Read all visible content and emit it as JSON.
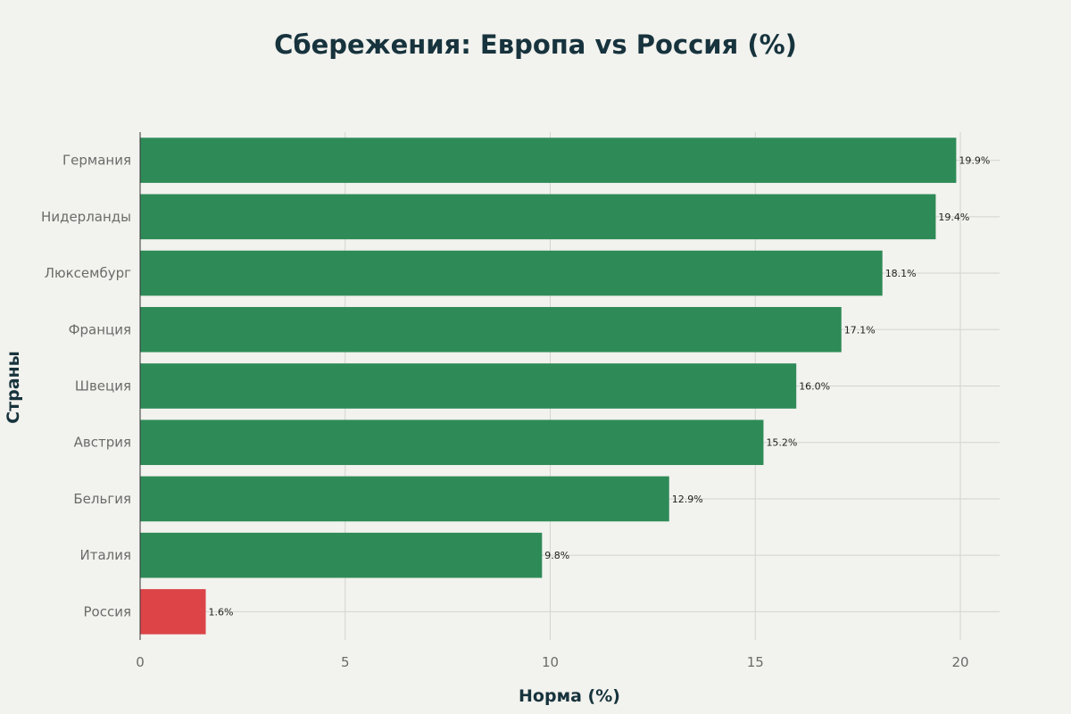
{
  "chart_data": {
    "type": "bar",
    "orientation": "horizontal",
    "title": "Сбережения: Европа vs Россия (%)",
    "xlabel": "Норма (%)",
    "ylabel": "Страны",
    "categories": [
      "Германия",
      "Нидерланды",
      "Люксембург",
      "Франция",
      "Швеция",
      "Австрия",
      "Бельгия",
      "Италия",
      "Россия"
    ],
    "values": [
      19.9,
      19.4,
      18.1,
      17.1,
      16.0,
      15.2,
      12.9,
      9.8,
      1.6
    ],
    "data_labels": [
      "19.9%",
      "19.4%",
      "18.1%",
      "17.1%",
      "16.0%",
      "15.2%",
      "12.9%",
      "9.8%",
      "1.6%"
    ],
    "xlim": [
      0,
      21
    ],
    "xticks": [
      0,
      5,
      10,
      15,
      20
    ],
    "xtick_labels": [
      "0",
      "5",
      "10",
      "15",
      "20"
    ],
    "grid": true,
    "legend": "none",
    "colors": {
      "europe": "#2e8b57",
      "russia": "#dc4448",
      "background": "#f2f2ee",
      "title": "#17333d"
    },
    "highlight_category": "Россия"
  }
}
